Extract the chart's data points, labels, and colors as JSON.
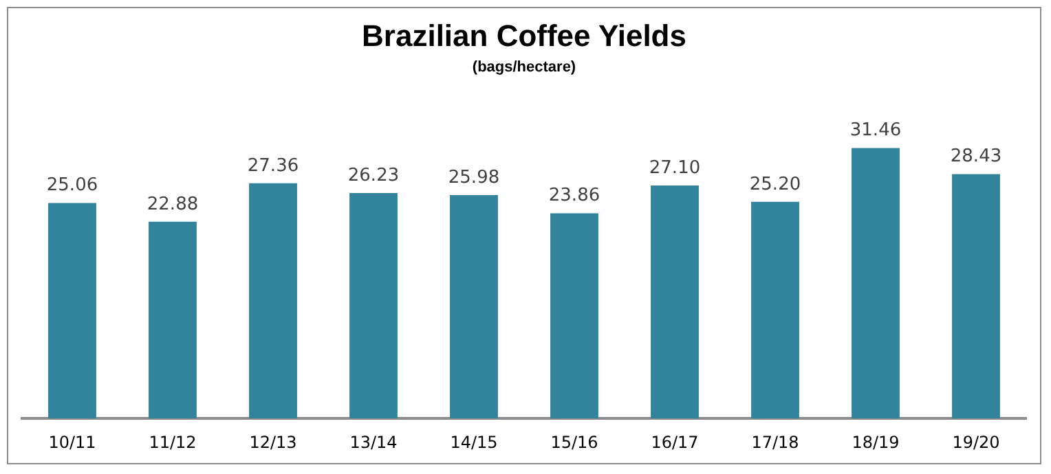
{
  "chart_data": {
    "type": "bar",
    "title": "Brazilian Coffee Yields",
    "subtitle": "(bags/hectare)",
    "categories": [
      "10/11",
      "11/12",
      "12/13",
      "13/14",
      "14/15",
      "15/16",
      "16/17",
      "17/18",
      "18/19",
      "19/20"
    ],
    "values": [
      25.06,
      22.88,
      27.36,
      26.23,
      25.98,
      23.86,
      27.1,
      25.2,
      31.46,
      28.43
    ],
    "value_labels": [
      "25.06",
      "22.88",
      "27.36",
      "26.23",
      "25.98",
      "23.86",
      "27.10",
      "25.20",
      "31.46",
      "28.43"
    ],
    "color": "#31849b",
    "tick_labels": "x",
    "grid": false,
    "legend": false
  }
}
